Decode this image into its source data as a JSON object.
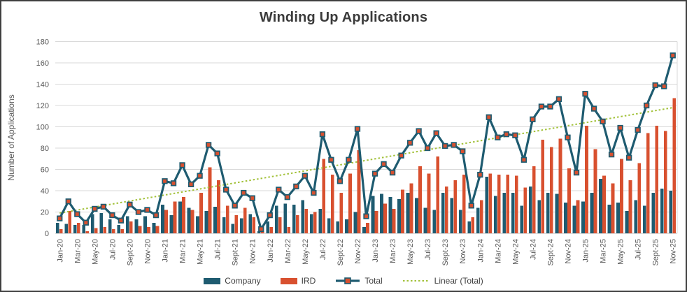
{
  "chart_data": {
    "type": "bar",
    "title": "Winding Up Applications",
    "xlabel": "",
    "ylabel": "Number of Applications",
    "ylim": [
      0,
      180
    ],
    "ytick_step": 20,
    "grid": true,
    "legend_position": "bottom",
    "x_tick_labels_shown_every": 2,
    "categories": [
      "Jan-20",
      "Feb-20",
      "Mar-20",
      "Apr-20",
      "May-20",
      "Jun-20",
      "Jul-20",
      "Aug-20",
      "Sept-20",
      "Oct-20",
      "Nov-20",
      "Dec-20",
      "Jan-21",
      "Feb-21",
      "Mar-21",
      "Apr-21",
      "May-21",
      "Jun-21",
      "Jul-21",
      "Aug-21",
      "Sept-21",
      "Oct-21",
      "Nov-21",
      "Dec-21",
      "Jan-22",
      "Feb-22",
      "Mar-22",
      "Apr-22",
      "May-22",
      "Jun-22",
      "Jul-22",
      "Aug-22",
      "Sept-22",
      "Oct-22",
      "Nov-22",
      "Dec-22",
      "Jan-23",
      "Feb-23",
      "Mar-23",
      "Apr-23",
      "May-23",
      "Jun-23",
      "Jul-23",
      "Aug-23",
      "Sept-23",
      "Oct-23",
      "Nov-23",
      "Dec-23",
      "Jan-24",
      "Feb-24",
      "Mar-24",
      "Apr-24",
      "May-24",
      "Jun-24",
      "Jul-24",
      "Aug-24",
      "Sept-24",
      "Oct-24",
      "Nov-24",
      "Dec-24",
      "Jan-25",
      "Feb-25",
      "Mar-25",
      "Apr-25",
      "May-25",
      "Jun-25",
      "Jul-25",
      "Aug-25",
      "Sept-25",
      "Oct-25",
      "Nov-25"
    ],
    "series": [
      {
        "name": "Company",
        "type": "bar",
        "color": "#1e5b70",
        "values": [
          10,
          9,
          8,
          8,
          18,
          19,
          13,
          8,
          16,
          13,
          16,
          10,
          27,
          17,
          30,
          24,
          16,
          21,
          25,
          15,
          9,
          14,
          18,
          2,
          11,
          26,
          28,
          27,
          31,
          18,
          23,
          14,
          11,
          13,
          20,
          6,
          35,
          37,
          34,
          32,
          38,
          33,
          24,
          22,
          38,
          33,
          22,
          11,
          24,
          53,
          35,
          38,
          38,
          26,
          44,
          31,
          38,
          37,
          29,
          26,
          30,
          38,
          51,
          27,
          29,
          21,
          31,
          26,
          38,
          42,
          40
        ]
      },
      {
        "name": "IRD",
        "type": "bar",
        "color": "#d8502f",
        "values": [
          4,
          21,
          10,
          2,
          5,
          6,
          4,
          4,
          11,
          7,
          6,
          7,
          22,
          30,
          34,
          22,
          38,
          62,
          50,
          26,
          17,
          24,
          15,
          2,
          6,
          15,
          6,
          17,
          23,
          20,
          70,
          55,
          38,
          56,
          78,
          10,
          21,
          28,
          23,
          41,
          47,
          63,
          56,
          72,
          44,
          50,
          55,
          15,
          31,
          56,
          55,
          55,
          54,
          43,
          63,
          88,
          81,
          89,
          61,
          31,
          101,
          79,
          54,
          47,
          70,
          50,
          66,
          94,
          101,
          96,
          127
        ]
      },
      {
        "name": "Total",
        "type": "line",
        "color": "#1e5b70",
        "marker": "square",
        "marker_fill": "#d8502f",
        "values": [
          14,
          30,
          18,
          10,
          23,
          25,
          17,
          12,
          27,
          20,
          22,
          17,
          49,
          47,
          64,
          46,
          54,
          83,
          75,
          41,
          26,
          38,
          33,
          4,
          17,
          41,
          34,
          44,
          54,
          38,
          93,
          69,
          49,
          69,
          98,
          16,
          56,
          65,
          57,
          73,
          85,
          96,
          80,
          94,
          82,
          83,
          77,
          26,
          55,
          109,
          90,
          93,
          92,
          69,
          107,
          119,
          119,
          126,
          90,
          57,
          131,
          117,
          105,
          74,
          99,
          71,
          97,
          120,
          139,
          138,
          167
        ]
      },
      {
        "name": "Linear (Total)",
        "type": "trendline",
        "style": "dotted",
        "color": "#a2c139",
        "endpoints": [
          19,
          118
        ]
      }
    ]
  },
  "legend": {
    "company": "Company",
    "ird": "IRD",
    "total": "Total",
    "linear": "Linear (Total)"
  },
  "colors": {
    "company": "#1e5b70",
    "ird": "#d8502f",
    "total_line": "#1e5b70",
    "marker_fill": "#d8502f",
    "trend": "#a2c139",
    "grid": "#d9d9d9",
    "axis_text": "#595959",
    "title_text": "#3b3b3b"
  }
}
